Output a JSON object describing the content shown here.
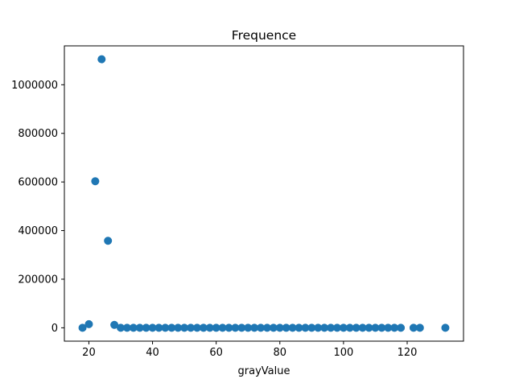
{
  "chart_data": {
    "type": "scatter",
    "title": "Frequence",
    "xlabel": "grayValue",
    "ylabel": "",
    "xlim": [
      12.3,
      137.7
    ],
    "ylim": [
      -55000,
      1160000
    ],
    "xticks": [
      20,
      40,
      60,
      80,
      100,
      120
    ],
    "yticks": [
      0,
      200000,
      400000,
      600000,
      800000,
      1000000
    ],
    "ytick_labels": [
      "0",
      "200000",
      "400000",
      "600000",
      "800000",
      "1000000"
    ],
    "grid": false,
    "marker_color": "#1f77b4",
    "series": [
      {
        "x": [
          18,
          20,
          22,
          24,
          26,
          28,
          30,
          32,
          34,
          36,
          38,
          40,
          42,
          44,
          46,
          48,
          50,
          52,
          54,
          56,
          58,
          60,
          62,
          64,
          66,
          68,
          70,
          72,
          74,
          76,
          78,
          80,
          82,
          84,
          86,
          88,
          90,
          92,
          94,
          96,
          98,
          100,
          102,
          104,
          106,
          108,
          110,
          112,
          114,
          116,
          118,
          122,
          124,
          132
        ],
        "y": [
          0,
          15000,
          603000,
          1105000,
          358000,
          12000,
          0,
          0,
          0,
          0,
          0,
          0,
          0,
          0,
          0,
          0,
          0,
          0,
          0,
          0,
          0,
          0,
          0,
          0,
          0,
          0,
          0,
          0,
          0,
          0,
          0,
          0,
          0,
          0,
          0,
          0,
          0,
          0,
          0,
          0,
          0,
          0,
          0,
          0,
          0,
          0,
          0,
          0,
          0,
          0,
          0,
          0,
          0,
          0
        ]
      }
    ]
  }
}
